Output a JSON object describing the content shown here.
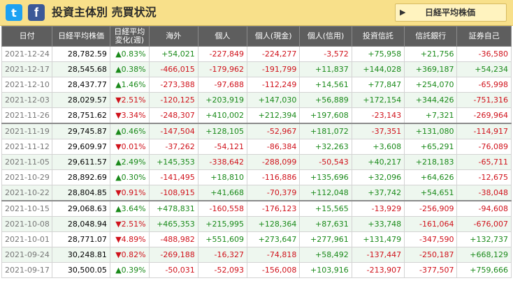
{
  "header": {
    "twitter_icon": "twitter-icon",
    "facebook_icon": "facebook-icon",
    "title": "投資主体別 売買状況",
    "button_label": "日経平均株価",
    "button_icon": "play-arrow-icon",
    "bar_color": "#f8e08a"
  },
  "table": {
    "columns": [
      "日付",
      "日経平均株価",
      "日経平均\n変化(週)",
      "海外",
      "個人",
      "個人(現金)",
      "個人(信用)",
      "投資信託",
      "信託銀行",
      "証券自己"
    ],
    "colors": {
      "positive": "#1a8a1a",
      "negative": "#d0121b",
      "header_bg": "#5e5e5e",
      "alt_row_bg": "#eef7ef"
    },
    "rows": [
      {
        "date": "2021-12-24",
        "nikkei": "28,782.59",
        "change": "▲0.83%",
        "overseas": "+54,021",
        "individual": "-227,849",
        "individual_cash": "-224,277",
        "individual_margin": "-3,572",
        "investment_trust": "+75,958",
        "trust_bank": "+21,756",
        "securities": "-36,580"
      },
      {
        "date": "2021-12-17",
        "nikkei": "28,545.68",
        "change": "▲0.38%",
        "overseas": "-466,015",
        "individual": "-179,962",
        "individual_cash": "-191,799",
        "individual_margin": "+11,837",
        "investment_trust": "+144,028",
        "trust_bank": "+369,187",
        "securities": "+54,234"
      },
      {
        "date": "2021-12-10",
        "nikkei": "28,437.77",
        "change": "▲1.46%",
        "overseas": "-273,388",
        "individual": "-97,688",
        "individual_cash": "-112,249",
        "individual_margin": "+14,561",
        "investment_trust": "+77,847",
        "trust_bank": "+254,070",
        "securities": "-65,998"
      },
      {
        "date": "2021-12-03",
        "nikkei": "28,029.57",
        "change": "▼2.51%",
        "overseas": "-120,125",
        "individual": "+203,919",
        "individual_cash": "+147,030",
        "individual_margin": "+56,889",
        "investment_trust": "+172,154",
        "trust_bank": "+344,426",
        "securities": "-751,316"
      },
      {
        "date": "2021-11-26",
        "nikkei": "28,751.62",
        "change": "▼3.34%",
        "overseas": "-248,307",
        "individual": "+410,002",
        "individual_cash": "+212,394",
        "individual_margin": "+197,608",
        "investment_trust": "-23,143",
        "trust_bank": "+7,321",
        "securities": "-269,964"
      },
      {
        "date": "2021-11-19",
        "nikkei": "29,745.87",
        "change": "▲0.46%",
        "overseas": "-147,504",
        "individual": "+128,105",
        "individual_cash": "-52,967",
        "individual_margin": "+181,072",
        "investment_trust": "-37,351",
        "trust_bank": "+131,080",
        "securities": "-114,917"
      },
      {
        "date": "2021-11-12",
        "nikkei": "29,609.97",
        "change": "▼0.01%",
        "overseas": "-37,262",
        "individual": "-54,121",
        "individual_cash": "-86,384",
        "individual_margin": "+32,263",
        "investment_trust": "+3,608",
        "trust_bank": "+65,291",
        "securities": "-76,089"
      },
      {
        "date": "2021-11-05",
        "nikkei": "29,611.57",
        "change": "▲2.49%",
        "overseas": "+145,353",
        "individual": "-338,642",
        "individual_cash": "-288,099",
        "individual_margin": "-50,543",
        "investment_trust": "+40,217",
        "trust_bank": "+218,183",
        "securities": "-65,711"
      },
      {
        "date": "2021-10-29",
        "nikkei": "28,892.69",
        "change": "▲0.30%",
        "overseas": "-141,495",
        "individual": "+18,810",
        "individual_cash": "-116,886",
        "individual_margin": "+135,696",
        "investment_trust": "+32,096",
        "trust_bank": "+64,626",
        "securities": "-12,675"
      },
      {
        "date": "2021-10-22",
        "nikkei": "28,804.85",
        "change": "▼0.91%",
        "overseas": "-108,915",
        "individual": "+41,668",
        "individual_cash": "-70,379",
        "individual_margin": "+112,048",
        "investment_trust": "+37,742",
        "trust_bank": "+54,651",
        "securities": "-38,048"
      },
      {
        "date": "2021-10-15",
        "nikkei": "29,068.63",
        "change": "▲3.64%",
        "overseas": "+478,831",
        "individual": "-160,558",
        "individual_cash": "-176,123",
        "individual_margin": "+15,565",
        "investment_trust": "-13,929",
        "trust_bank": "-256,909",
        "securities": "-94,608"
      },
      {
        "date": "2021-10-08",
        "nikkei": "28,048.94",
        "change": "▼2.51%",
        "overseas": "+465,353",
        "individual": "+215,995",
        "individual_cash": "+128,364",
        "individual_margin": "+87,631",
        "investment_trust": "+33,748",
        "trust_bank": "-161,064",
        "securities": "-676,007"
      },
      {
        "date": "2021-10-01",
        "nikkei": "28,771.07",
        "change": "▼4.89%",
        "overseas": "-488,982",
        "individual": "+551,609",
        "individual_cash": "+273,647",
        "individual_margin": "+277,961",
        "investment_trust": "+131,479",
        "trust_bank": "-347,590",
        "securities": "+132,737"
      },
      {
        "date": "2021-09-24",
        "nikkei": "30,248.81",
        "change": "▼0.82%",
        "overseas": "-269,188",
        "individual": "-16,327",
        "individual_cash": "-74,818",
        "individual_margin": "+58,492",
        "investment_trust": "-137,447",
        "trust_bank": "-250,187",
        "securities": "+668,129"
      },
      {
        "date": "2021-09-17",
        "nikkei": "30,500.05",
        "change": "▲0.39%",
        "overseas": "-50,031",
        "individual": "-52,093",
        "individual_cash": "-156,008",
        "individual_margin": "+103,916",
        "investment_trust": "-213,907",
        "trust_bank": "-377,507",
        "securities": "+759,666"
      }
    ]
  }
}
